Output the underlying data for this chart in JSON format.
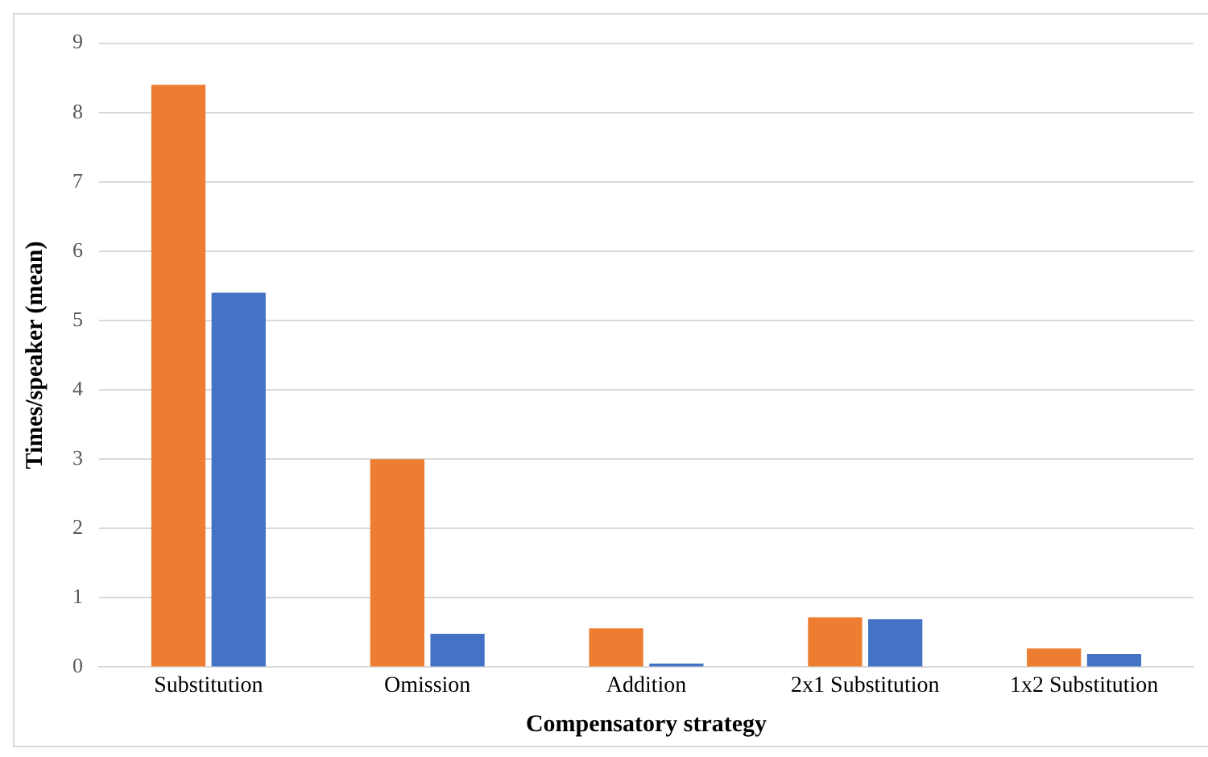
{
  "chart_data": {
    "type": "bar",
    "xlabel": "Compensatory strategy",
    "ylabel": "Times/speaker (mean)",
    "categories": [
      "Substitution",
      "Omission",
      "Addition",
      "2x1 Substitution",
      "1x2 Substitution"
    ],
    "series": [
      {
        "color": "#ed7d31",
        "values": [
          8.4,
          3.0,
          0.56,
          0.72,
          0.27
        ]
      },
      {
        "color": "#4472c4",
        "values": [
          5.4,
          0.48,
          0.05,
          0.69,
          0.19
        ]
      }
    ],
    "ylim": [
      0,
      9
    ],
    "yticks": [
      0,
      1,
      2,
      3,
      4,
      5,
      6,
      7,
      8,
      9
    ],
    "grid": "y",
    "legend": false
  }
}
